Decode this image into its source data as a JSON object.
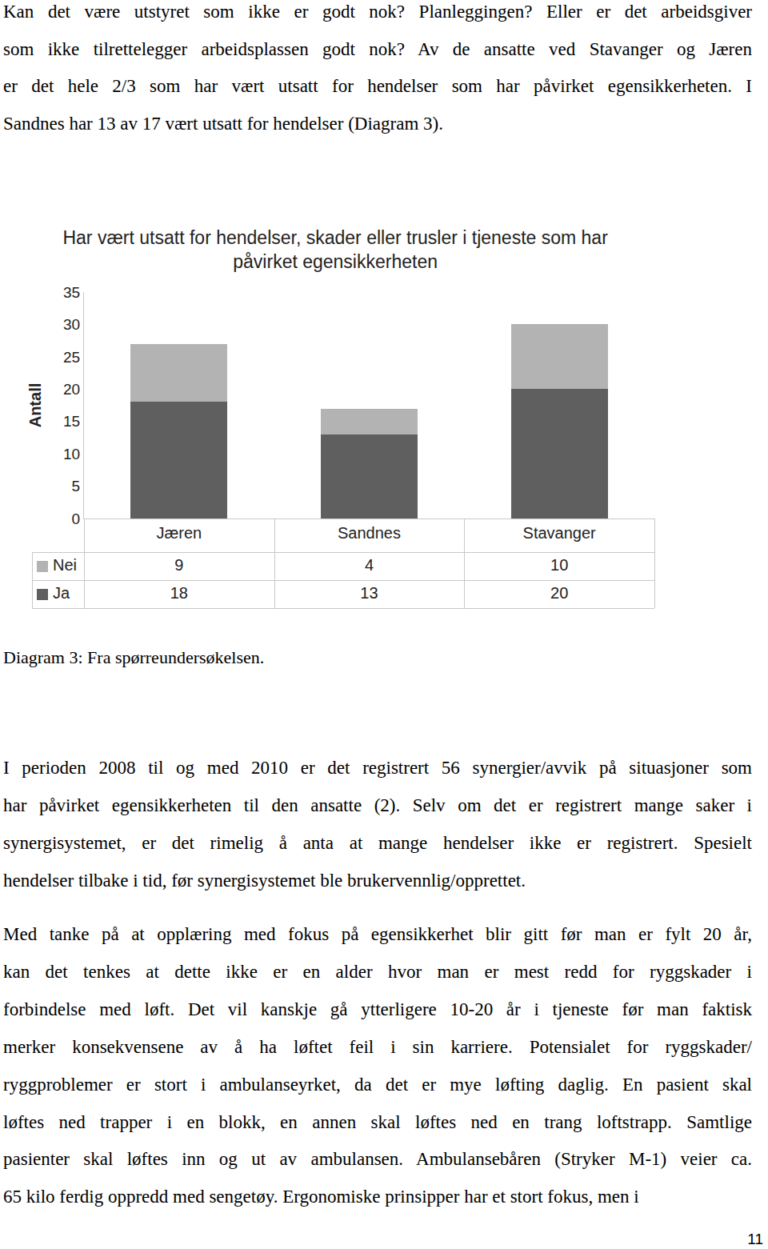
{
  "paragraphs_before": [
    [
      "Kan det være utstyret som ikke er godt nok? Planleggingen? Eller er det arbeidsgiver",
      "som ikke tilrettelegger arbeidsplassen godt nok? Av de ansatte ved Stavanger og Jæren",
      "er det hele 2/3 som har vært utsatt for hendelser som har påvirket egensikkerheten. I",
      "Sandnes har 13 av 17 vært utsatt for hendelser (Diagram 3)."
    ]
  ],
  "chart_data": {
    "type": "bar",
    "stacked": true,
    "title": "Har vært utsatt for hendelser, skader eller trusler i tjeneste som har påvirket egensikkerheten",
    "y_label": "Antall",
    "categories": [
      "Jæren",
      "Sandnes",
      "Stavanger"
    ],
    "series": [
      {
        "name": "Nei",
        "color": "#b3b3b3",
        "values": [
          9,
          4,
          10
        ]
      },
      {
        "name": "Ja",
        "color": "#5f5f5f",
        "values": [
          18,
          13,
          20
        ]
      }
    ],
    "ylim": [
      0,
      35
    ],
    "yticks": [
      0,
      5,
      10,
      15,
      20,
      25,
      30,
      35
    ],
    "grid": false
  },
  "caption": "Diagram 3: Fra spørreundersøkelsen.",
  "paragraphs_after": [
    [
      "I perioden 2008 til og med 2010 er det registrert 56 synergier/avvik på situasjoner som",
      "har påvirket egensikkerheten til den ansatte (2). Selv om det er registrert mange saker i",
      "synergisystemet, er det rimelig å anta at mange hendelser ikke er registrert. Spesielt",
      "hendelser tilbake i tid, før synergisystemet ble brukervennlig/opprettet."
    ],
    [
      "Med tanke på at opplæring med fokus på egensikkerhet blir gitt før man er fylt 20 år,",
      "kan det tenkes at dette ikke er en alder hvor man er mest redd for ryggskader i",
      "forbindelse med løft. Det vil kanskje gå ytterligere 10-20 år i tjeneste før man faktisk",
      "merker konsekvensene av å ha løftet feil i sin karriere. Potensialet for ryggskader/",
      "ryggproblemer er stort i ambulanseyrket, da det er mye løfting daglig. En pasient skal",
      "løftes ned trapper i en blokk, en annen skal løftes ned en trang loftstrapp. Samtlige",
      "pasienter skal løftes inn og ut av ambulansen. Ambulansebåren (Stryker M-1) veier ca.",
      "65 kilo ferdig oppredd med sengetøy. Ergonomiske prinsipper har et stort fokus, men i"
    ]
  ],
  "page_number": "11"
}
